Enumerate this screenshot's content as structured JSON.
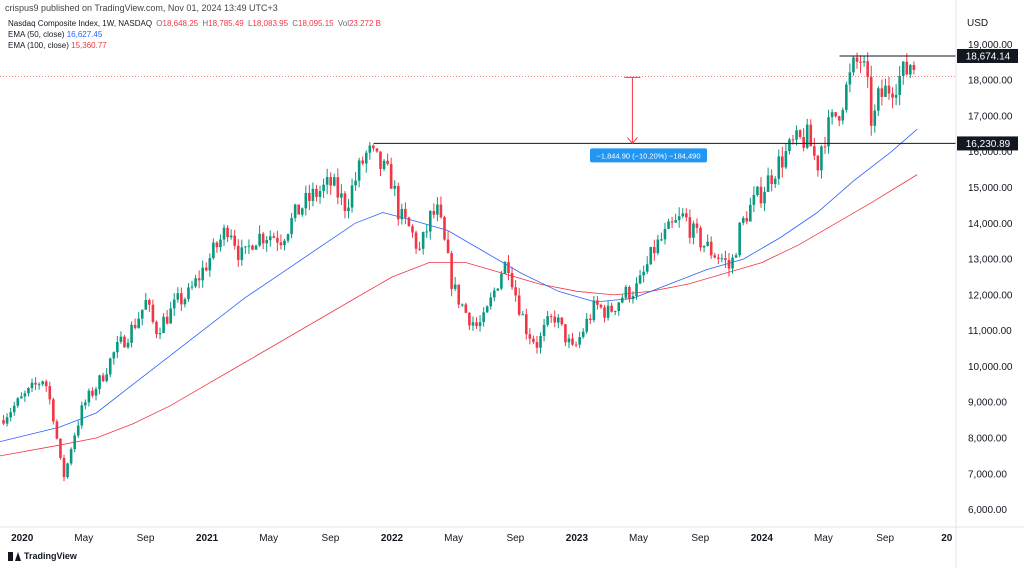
{
  "header": {
    "publisher": "crispus9 published on TradingView.com, Nov 01, 2024 13:49 UTC+3",
    "symbol": "Nasdaq Composite Index, 1W, NASDAQ",
    "open_label": "O",
    "open": "18,648.25",
    "high_label": "H",
    "high": "18,785.49",
    "low_label": "L",
    "low": "18,083.95",
    "close_label": "C",
    "close": "18,095.15",
    "vol_label": "Vol",
    "vol": "23.272 B",
    "ema50_label": "EMA (50, close)",
    "ema50_value": "16,627.45",
    "ema100_label": "EMA (100, close)",
    "ema100_value": "15,360.77",
    "currency": "USD"
  },
  "footer": {
    "brand": "TradingView"
  },
  "colors": {
    "up": "#089981",
    "down": "#f23645",
    "ema50": "#2962ff",
    "ema100": "#f23645",
    "measure": "#2196f3"
  },
  "chart_data": {
    "type": "candlestick",
    "xlabel": "",
    "ylabel": "",
    "y_ticks": [
      6000,
      7000,
      8000,
      9000,
      10000,
      11000,
      12000,
      13000,
      14000,
      15000,
      16000,
      17000,
      18000,
      19000
    ],
    "y_tick_labels": [
      "6,000.00",
      "7,000.00",
      "8,000.00",
      "9,000.00",
      "10,000.00",
      "11,000.00",
      "12,000.00",
      "13,000.00",
      "14,000.00",
      "15,000.00",
      "16,000.00",
      "17,000.00",
      "18,000.00",
      "19,000.00"
    ],
    "ylim": [
      5570,
      19400
    ],
    "x_ticks": [
      {
        "label": "2020",
        "t": 2020.0,
        "bold": true
      },
      {
        "label": "May",
        "t": 2020.333
      },
      {
        "label": "Sep",
        "t": 2020.667
      },
      {
        "label": "2021",
        "t": 2021.0,
        "bold": true
      },
      {
        "label": "May",
        "t": 2021.333
      },
      {
        "label": "Sep",
        "t": 2021.667
      },
      {
        "label": "2022",
        "t": 2022.0,
        "bold": true
      },
      {
        "label": "May",
        "t": 2022.333
      },
      {
        "label": "Sep",
        "t": 2022.667
      },
      {
        "label": "2023",
        "t": 2023.0,
        "bold": true
      },
      {
        "label": "May",
        "t": 2023.333
      },
      {
        "label": "Sep",
        "t": 2023.667
      },
      {
        "label": "2024",
        "t": 2024.0,
        "bold": true
      },
      {
        "label": "May",
        "t": 2024.333
      },
      {
        "label": "Sep",
        "t": 2024.667
      },
      {
        "label": "20",
        "t": 2025.0,
        "bold": true
      }
    ],
    "xlim": [
      2019.88,
      2025.05
    ],
    "close_series": [
      [
        2019.88,
        8500
      ],
      [
        2020.04,
        9300
      ],
      [
        2020.12,
        9700
      ],
      [
        2020.17,
        8600
      ],
      [
        2020.21,
        7200
      ],
      [
        2020.23,
        6900
      ],
      [
        2020.27,
        7900
      ],
      [
        2020.33,
        8900
      ],
      [
        2020.42,
        9600
      ],
      [
        2020.5,
        10400
      ],
      [
        2020.6,
        11100
      ],
      [
        2020.67,
        11800
      ],
      [
        2020.72,
        11000
      ],
      [
        2020.8,
        11500
      ],
      [
        2020.84,
        11800
      ],
      [
        2020.9,
        12000
      ],
      [
        2021.0,
        12900
      ],
      [
        2021.08,
        13600
      ],
      [
        2021.12,
        14000
      ],
      [
        2021.17,
        13200
      ],
      [
        2021.2,
        13000
      ],
      [
        2021.25,
        13600
      ],
      [
        2021.33,
        13700
      ],
      [
        2021.4,
        13600
      ],
      [
        2021.5,
        14400
      ],
      [
        2021.58,
        14800
      ],
      [
        2021.67,
        15100
      ],
      [
        2021.75,
        14500
      ],
      [
        2021.83,
        15600
      ],
      [
        2021.87,
        16000
      ],
      [
        2021.92,
        15700
      ],
      [
        2022.0,
        15200
      ],
      [
        2022.04,
        14200
      ],
      [
        2022.1,
        13800
      ],
      [
        2022.15,
        13200
      ],
      [
        2022.21,
        14200
      ],
      [
        2022.25,
        14300
      ],
      [
        2022.33,
        12200
      ],
      [
        2022.4,
        11500
      ],
      [
        2022.46,
        11100
      ],
      [
        2022.5,
        11300
      ],
      [
        2022.6,
        12800
      ],
      [
        2022.63,
        12900
      ],
      [
        2022.67,
        12000
      ],
      [
        2022.73,
        11000
      ],
      [
        2022.79,
        10600
      ],
      [
        2022.83,
        11100
      ],
      [
        2022.88,
        11400
      ],
      [
        2022.92,
        11000
      ],
      [
        2022.98,
        10400
      ],
      [
        2023.04,
        11100
      ],
      [
        2023.1,
        11700
      ],
      [
        2023.17,
        11500
      ],
      [
        2023.25,
        12000
      ],
      [
        2023.33,
        12200
      ],
      [
        2023.42,
        13300
      ],
      [
        2023.5,
        13800
      ],
      [
        2023.58,
        14200
      ],
      [
        2023.63,
        13700
      ],
      [
        2023.67,
        13500
      ],
      [
        2023.73,
        13200
      ],
      [
        2023.79,
        13000
      ],
      [
        2023.83,
        12700
      ],
      [
        2023.88,
        13800
      ],
      [
        2023.92,
        14300
      ],
      [
        2024.0,
        14900
      ],
      [
        2024.08,
        15600
      ],
      [
        2024.17,
        16200
      ],
      [
        2024.25,
        16400
      ],
      [
        2024.3,
        15600
      ],
      [
        2024.33,
        16400
      ],
      [
        2024.42,
        17200
      ],
      [
        2024.5,
        18400
      ],
      [
        2024.54,
        18600
      ],
      [
        2024.58,
        17500
      ],
      [
        2024.6,
        16500
      ],
      [
        2024.62,
        17400
      ],
      [
        2024.67,
        17700
      ],
      [
        2024.75,
        18100
      ],
      [
        2024.79,
        18300
      ],
      [
        2024.81,
        18600
      ],
      [
        2024.84,
        18095
      ]
    ],
    "series": [
      {
        "name": "EMA (50, close)",
        "points": [
          [
            2019.88,
            7900
          ],
          [
            2020.2,
            8300
          ],
          [
            2020.4,
            8700
          ],
          [
            2020.6,
            9500
          ],
          [
            2020.8,
            10300
          ],
          [
            2021.0,
            11100
          ],
          [
            2021.2,
            11900
          ],
          [
            2021.4,
            12600
          ],
          [
            2021.6,
            13300
          ],
          [
            2021.8,
            14000
          ],
          [
            2021.95,
            14300
          ],
          [
            2022.1,
            14100
          ],
          [
            2022.3,
            13800
          ],
          [
            2022.5,
            13200
          ],
          [
            2022.7,
            12600
          ],
          [
            2022.9,
            12100
          ],
          [
            2023.1,
            11800
          ],
          [
            2023.3,
            11900
          ],
          [
            2023.5,
            12300
          ],
          [
            2023.7,
            12700
          ],
          [
            2023.9,
            13000
          ],
          [
            2024.1,
            13600
          ],
          [
            2024.3,
            14300
          ],
          [
            2024.5,
            15200
          ],
          [
            2024.7,
            16000
          ],
          [
            2024.84,
            16627.45
          ]
        ]
      },
      {
        "name": "EMA (100, close)",
        "points": [
          [
            2019.88,
            7500
          ],
          [
            2020.2,
            7800
          ],
          [
            2020.4,
            8000
          ],
          [
            2020.6,
            8400
          ],
          [
            2020.8,
            8900
          ],
          [
            2021.0,
            9500
          ],
          [
            2021.2,
            10100
          ],
          [
            2021.4,
            10700
          ],
          [
            2021.6,
            11300
          ],
          [
            2021.8,
            11900
          ],
          [
            2022.0,
            12500
          ],
          [
            2022.2,
            12900
          ],
          [
            2022.4,
            12900
          ],
          [
            2022.6,
            12600
          ],
          [
            2022.8,
            12300
          ],
          [
            2023.0,
            12100
          ],
          [
            2023.2,
            12000
          ],
          [
            2023.4,
            12100
          ],
          [
            2023.6,
            12300
          ],
          [
            2023.8,
            12600
          ],
          [
            2024.0,
            12900
          ],
          [
            2024.2,
            13400
          ],
          [
            2024.4,
            14000
          ],
          [
            2024.6,
            14600
          ],
          [
            2024.84,
            15360.77
          ]
        ]
      }
    ],
    "annotations": {
      "resistance": {
        "label": "18,674.14",
        "value": 18674.14,
        "t_start": 2024.42
      },
      "support": {
        "label": "16,230.89",
        "value": 16230.89,
        "t_start": 2021.9
      },
      "last_price": {
        "value": 18095.15
      },
      "measure": {
        "label": "−1,844.90 (−10.20%) −184,490",
        "from": 18075,
        "to": 16230.89,
        "t": 2023.3
      }
    }
  }
}
